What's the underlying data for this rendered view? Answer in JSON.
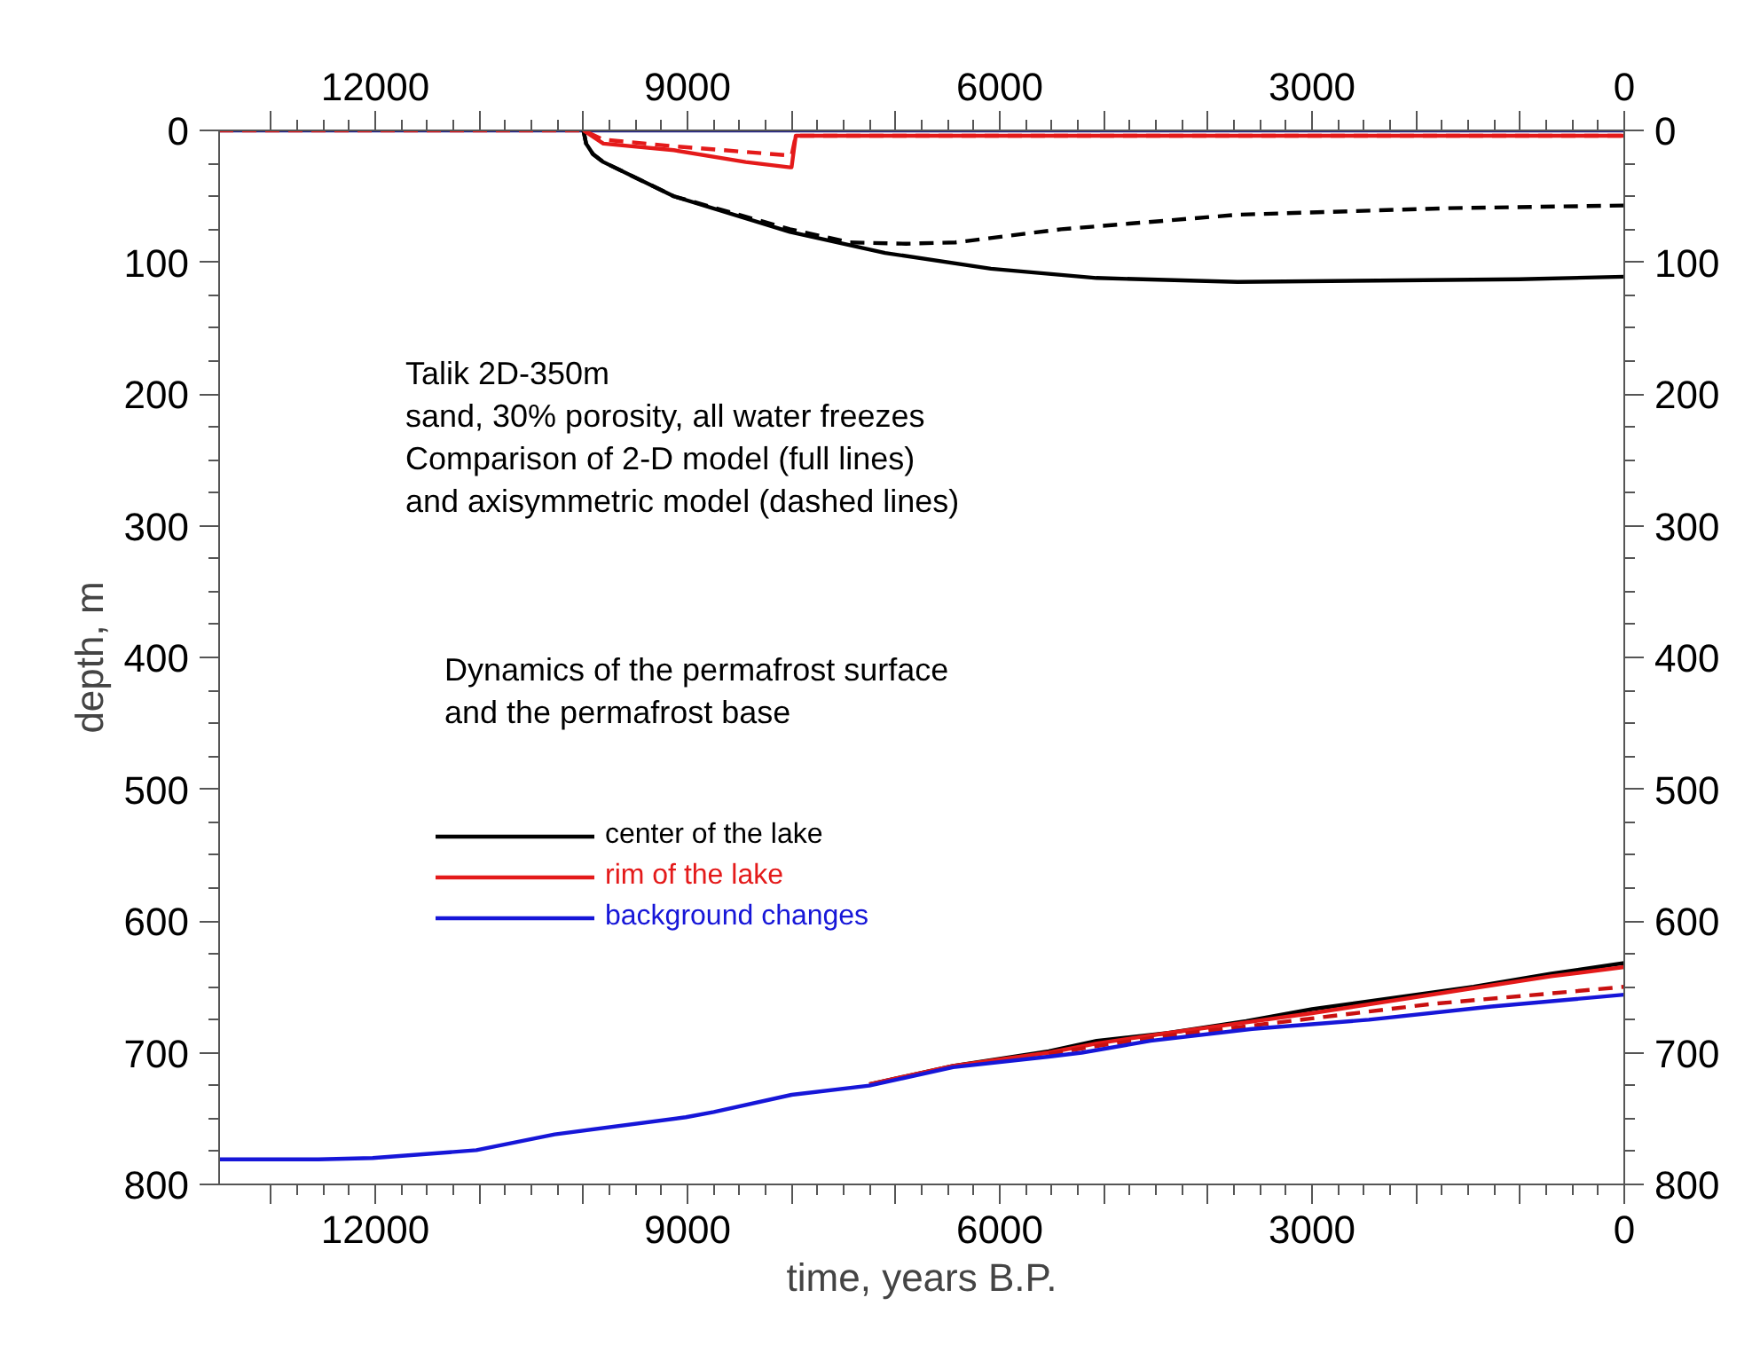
{
  "chart_data": {
    "type": "line",
    "xlabel": "time, years B.P.",
    "ylabel": "depth, m",
    "xlim": [
      13500,
      0
    ],
    "xticks": [
      {
        "value": 13000,
        "label": null
      },
      12000,
      {
        "value": 11000,
        "label": null
      },
      {
        "value": 10000,
        "label": null
      },
      9000,
      {
        "value": 8000,
        "label": null
      },
      {
        "value": 7000,
        "label": null
      },
      6000,
      {
        "value": 5000,
        "label": null
      },
      {
        "value": 4000,
        "label": null
      },
      3000,
      {
        "value": 2000,
        "label": null
      },
      {
        "value": 1000,
        "label": null
      },
      0
    ],
    "x2lim": [
      13500,
      0
    ],
    "x2ticks": [
      {
        "value": 13000,
        "label": null
      },
      12000,
      {
        "value": 11000,
        "label": null
      },
      {
        "value": 10000,
        "label": null
      },
      9000,
      {
        "value": 8000,
        "label": null
      },
      {
        "value": 7000,
        "label": null
      },
      6000,
      {
        "value": 5000,
        "label": null
      },
      {
        "value": 4000,
        "label": null
      },
      3000,
      {
        "value": 2000,
        "label": null
      },
      {
        "value": 1000,
        "label": null
      },
      0
    ],
    "ylim": [
      800,
      0
    ],
    "yticks": [
      0,
      100,
      200,
      300,
      400,
      500,
      600,
      700,
      800
    ],
    "y2lim": [
      800,
      0
    ],
    "y2ticks": [
      0,
      100,
      200,
      300,
      400,
      500,
      600,
      700,
      800
    ],
    "grid": false,
    "legend": "left",
    "marker": "none",
    "annotations": [
      "Talik 2D-350m",
      "sand, 30% porosity, all water freezes",
      "Comparison of 2-D model (full lines)",
      "and axisymmetric model (dashed lines)",
      "Dynamics of the permafrost surface",
      "and the permafrost base"
    ],
    "series": [
      {
        "color": "#22228a",
        "line_style": "solid",
        "x": [
          13500,
          0
        ],
        "values": [
          0,
          0
        ]
      },
      {
        "color": "#000000",
        "line_style": "solid",
        "x": [
          10000,
          9974,
          9908,
          9808,
          9131,
          8016,
          7102,
          6085,
          5071,
          3716,
          2367,
          1012,
          0
        ],
        "values": [
          0,
          10,
          18,
          24,
          50,
          77,
          93,
          105,
          112,
          115,
          114,
          113,
          111
        ]
      },
      {
        "color": "#000000",
        "line_style": "dashed",
        "x": [
          10000,
          9974,
          9908,
          9808,
          9131,
          8016,
          7440,
          6898,
          6426,
          5410,
          3716,
          1688,
          0
        ],
        "values": [
          0,
          10,
          18,
          24,
          50,
          75,
          85,
          86,
          85,
          75,
          64,
          59,
          57
        ]
      },
      {
        "color": "#e41a1a",
        "line_style": "solid",
        "x": [
          10000,
          9808,
          9131,
          8441,
          8016,
          8000,
          7960,
          7102,
          0
        ],
        "values": [
          0,
          10,
          15,
          24,
          28,
          28,
          4,
          4,
          4
        ]
      },
      {
        "color": "#e41a1a",
        "line_style": "dashed",
        "x": [
          13500,
          10000,
          9808,
          9131,
          8016,
          8000,
          7960,
          7102,
          0
        ],
        "values": [
          0,
          0,
          7,
          12,
          19,
          19,
          4,
          4,
          4
        ]
      },
      {
        "name": "center of the lake",
        "color": "#000000",
        "line_style": "solid",
        "x": [
          7253,
          6448,
          5529,
          5069,
          4379,
          3632,
          3000,
          1448,
          701,
          0
        ],
        "values": [
          724,
          710,
          699,
          691,
          685,
          676,
          667,
          650,
          640,
          632
        ]
      },
      {
        "name": "rim of the lake",
        "color": "#e41a1a",
        "line_style": "solid",
        "x": [
          7253,
          6448,
          5529,
          5069,
          4379,
          3632,
          3000,
          1448,
          701,
          0
        ],
        "values": [
          724,
          710,
          700,
          693,
          685,
          677,
          670,
          651,
          642,
          635
        ]
      },
      {
        "color": "#c81010",
        "line_style": "dashed",
        "x": [
          5529,
          5069,
          4379,
          3000,
          1850,
          701,
          0
        ],
        "values": [
          701,
          695,
          687,
          674,
          663,
          655,
          650
        ]
      },
      {
        "name": "background changes",
        "color": "#1616d8",
        "line_style": "solid",
        "x": [
          13500,
          12545,
          12025,
          11028,
          10277,
          9016,
          8747,
          8000,
          7253,
          6448,
          5529,
          5213,
          4552,
          3575,
          2454,
          1276,
          0
        ],
        "values": [
          781,
          781,
          780,
          774,
          762,
          749,
          745,
          732,
          725,
          711,
          703,
          700,
          691,
          682,
          675,
          665,
          656
        ]
      }
    ]
  }
}
